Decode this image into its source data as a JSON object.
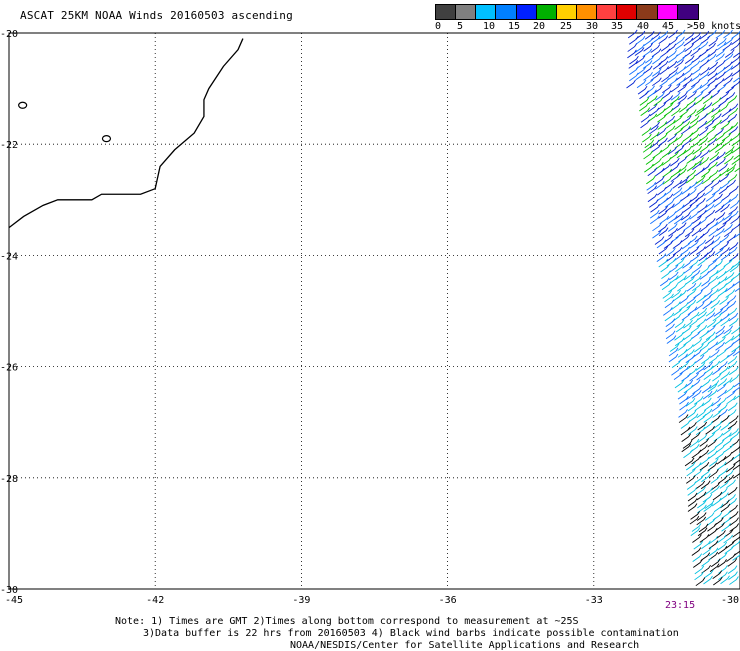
{
  "title": "ASCAT 25KM NOAA Winds 20160503 ascending",
  "legend": {
    "labels": [
      "0",
      "5",
      "10",
      "15",
      "20",
      "25",
      "30",
      "35",
      "40",
      "45",
      ">50 knots"
    ],
    "colors": [
      "#404040",
      "#808080",
      "#00c0ff",
      "#0080ff",
      "#0020ff",
      "#00b000",
      "#ffd000",
      "#ff9000",
      "#ff4040",
      "#e00000",
      "#8b3a1a",
      "#ff00ff",
      "#400080"
    ]
  },
  "map": {
    "lon_min": -45,
    "lon_max": -30,
    "lat_min": -30,
    "lat_max": -20,
    "x_ticks": [
      -45,
      -42,
      -39,
      -36,
      -33,
      -30
    ],
    "x_tick_labels": [
      "-45",
      "-42",
      "-39",
      "-36",
      "-33",
      "-30"
    ],
    "y_ticks": [
      -20,
      -22,
      -24,
      -26,
      -28,
      -30
    ],
    "y_tick_labels": [
      "-20",
      "-22",
      "-24",
      "-26",
      "-28",
      "-30"
    ],
    "coastline": [
      [
        -40.2,
        -20.1
      ],
      [
        -40.3,
        -20.3
      ],
      [
        -40.6,
        -20.6
      ],
      [
        -40.9,
        -21.0
      ],
      [
        -41.0,
        -21.2
      ],
      [
        -41.0,
        -21.5
      ],
      [
        -41.2,
        -21.8
      ],
      [
        -41.6,
        -22.1
      ],
      [
        -41.9,
        -22.4
      ],
      [
        -42.0,
        -22.8
      ],
      [
        -42.3,
        -22.9
      ],
      [
        -42.6,
        -22.9
      ],
      [
        -43.1,
        -22.9
      ],
      [
        -43.3,
        -23.0
      ],
      [
        -43.6,
        -23.0
      ],
      [
        -44.0,
        -23.0
      ],
      [
        -44.3,
        -23.1
      ],
      [
        -44.7,
        -23.3
      ],
      [
        -45.0,
        -23.5
      ]
    ],
    "island_points": [
      [
        -44.72,
        -21.3
      ],
      [
        -43.0,
        -21.9
      ]
    ],
    "wind_colors": {
      "blue": "#0020d0",
      "green": "#00c000",
      "lightblue": "#1070ff",
      "cyan": "#00c0e0",
      "black": "#000000"
    }
  },
  "timestamp": "23:15",
  "notes": [
    "Note: 1) Times are GMT 2)Times along bottom correspond to measurement at ~25S",
    "3)Data buffer is 22 hrs from 20160503 4) Black wind barbs indicate possible contamination",
    "NOAA/NESDIS/Center for Satellite Applications and Research"
  ]
}
